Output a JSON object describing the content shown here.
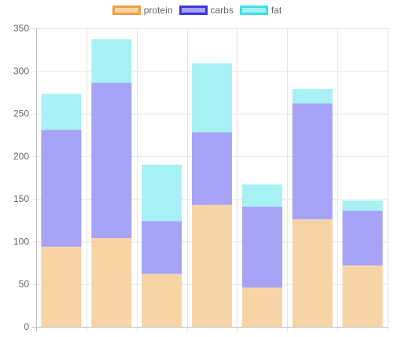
{
  "chart_data": {
    "type": "bar",
    "stacked": true,
    "categories": [
      "",
      "",
      "",
      "",
      "",
      "",
      ""
    ],
    "series": [
      {
        "name": "protein",
        "values": [
          94,
          104,
          62,
          143,
          46,
          126,
          72
        ],
        "fill": "#f7d4a6",
        "border": "#f0a040"
      },
      {
        "name": "carbs",
        "values": [
          137,
          182,
          62,
          85,
          95,
          136,
          64
        ],
        "fill": "#a7a4f7",
        "border": "#3b36e0"
      },
      {
        "name": "fat",
        "values": [
          42,
          51,
          66,
          81,
          26,
          17,
          12
        ],
        "fill": "#a7f1f4",
        "border": "#3fe0e6"
      }
    ],
    "title": "",
    "xlabel": "",
    "ylabel": "",
    "ylim": [
      0,
      350
    ],
    "yticks": [
      0,
      50,
      100,
      150,
      200,
      250,
      300,
      350
    ],
    "grid": true,
    "legend_position": "top"
  },
  "colors": {
    "grid": "#e6e6e6",
    "axis": "#bfbfbf",
    "tick_text": "#666666"
  }
}
